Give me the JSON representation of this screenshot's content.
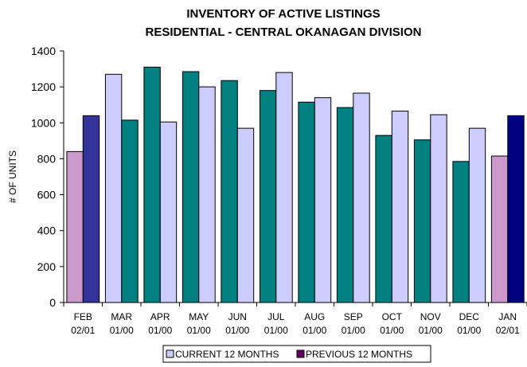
{
  "chart_data": {
    "type": "bar",
    "title": [
      "INVENTORY OF ACTIVE LISTINGS",
      "RESIDENTIAL - CENTRAL OKANAGAN DIVISION"
    ],
    "ylabel": "# OF UNITS",
    "ylim": [
      0,
      1400
    ],
    "yticks": [
      0,
      200,
      400,
      600,
      800,
      1000,
      1200,
      1400
    ],
    "grid": false,
    "legend_position": "bottom",
    "categories": [
      [
        "FEB",
        "02/01"
      ],
      [
        "MAR",
        "01/00"
      ],
      [
        "APR",
        "01/00"
      ],
      [
        "MAY",
        "01/00"
      ],
      [
        "JUN",
        "01/00"
      ],
      [
        "JUL",
        "01/00"
      ],
      [
        "AUG",
        "01/00"
      ],
      [
        "SEP",
        "01/00"
      ],
      [
        "OCT",
        "01/00"
      ],
      [
        "NOV",
        "01/00"
      ],
      [
        "DEC",
        "01/00"
      ],
      [
        "JAN",
        "02/01"
      ]
    ],
    "series": [
      {
        "name": "CURRENT 12 MONTHS",
        "values": [
          840,
          1270,
          1310,
          1285,
          1235,
          1180,
          1115,
          1085,
          930,
          905,
          785,
          815
        ]
      },
      {
        "name": "PREVIOUS 12 MONTHS",
        "values": [
          1040,
          1015,
          1005,
          1200,
          970,
          1280,
          1140,
          1165,
          1065,
          1045,
          970,
          1040
        ]
      }
    ],
    "bar_colors": [
      [
        "#cc99cc",
        "#333399"
      ],
      [
        "#ccccff",
        "#008080"
      ],
      [
        "#008080",
        "#ccccff"
      ],
      [
        "#008080",
        "#ccccff"
      ],
      [
        "#008080",
        "#ccccff"
      ],
      [
        "#008080",
        "#ccccff"
      ],
      [
        "#008080",
        "#ccccff"
      ],
      [
        "#008080",
        "#ccccff"
      ],
      [
        "#008080",
        "#ccccff"
      ],
      [
        "#008080",
        "#ccccff"
      ],
      [
        "#008080",
        "#ccccff"
      ],
      [
        "#cc99cc",
        "#000080"
      ]
    ],
    "legend_colors": [
      "#ccccff",
      "#660066"
    ]
  }
}
